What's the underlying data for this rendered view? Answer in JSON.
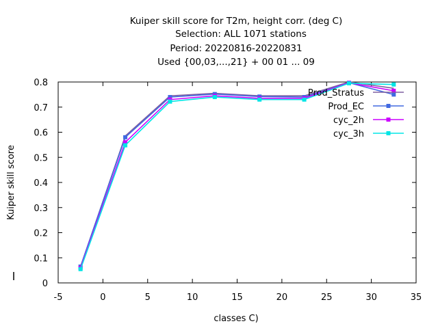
{
  "chart_data": {
    "type": "line",
    "title_lines": [
      "Kuiper skill score  for T2m, height corr. (deg C)",
      "Selection: ALL    1071 stations",
      "Period: 20220816-20220831",
      "Used {00,03,...,21} + 00 01 ... 09"
    ],
    "xlabel": "classes C)",
    "ylabel": "Kuiper skill score",
    "xlim": [
      -5,
      35
    ],
    "ylim": [
      0,
      0.8
    ],
    "xticks": [
      -5,
      0,
      5,
      10,
      15,
      20,
      25,
      30,
      35
    ],
    "yticks": [
      0,
      0.1,
      0.2,
      0.3,
      0.4,
      0.5,
      0.6,
      0.7,
      0.8
    ],
    "legend_position": "top-right",
    "x": [
      -2.5,
      2.5,
      7.5,
      12.5,
      17.5,
      22.5,
      27.5,
      32.5
    ],
    "series": [
      {
        "name": "Prod_Stratus",
        "color": "#7f5fa0",
        "marker": "none",
        "values": [
          0.065,
          0.585,
          0.745,
          0.755,
          0.745,
          0.745,
          0.8,
          0.775
        ]
      },
      {
        "name": "Prod_EC",
        "color": "#4169e1",
        "marker": "square",
        "values": [
          0.065,
          0.58,
          0.74,
          0.752,
          0.742,
          0.74,
          0.797,
          0.75
        ]
      },
      {
        "name": "cyc_2h",
        "color": "#cc00ff",
        "marker": "square",
        "values": [
          0.06,
          0.56,
          0.73,
          0.745,
          0.735,
          0.735,
          0.797,
          0.765
        ]
      },
      {
        "name": "cyc_3h",
        "color": "#00e5e5",
        "marker": "square",
        "values": [
          0.055,
          0.548,
          0.722,
          0.74,
          0.73,
          0.73,
          0.795,
          0.79
        ]
      }
    ]
  }
}
